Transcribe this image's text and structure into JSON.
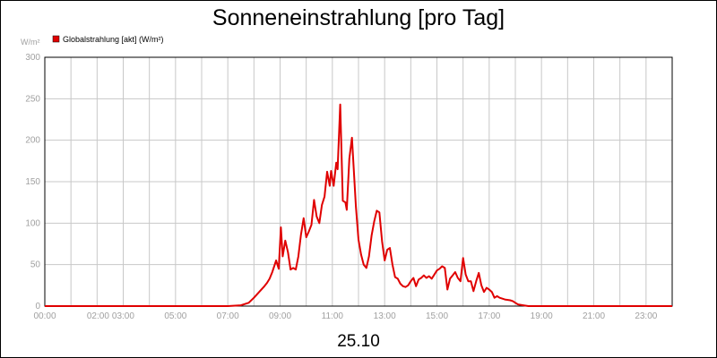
{
  "chart_data": {
    "type": "line",
    "title": "Sonneneinstrahlung [pro Tag]",
    "ylabel": "W/m²",
    "xlabel": "25.10",
    "ylim": [
      0,
      300
    ],
    "yticks": [
      0,
      50,
      100,
      150,
      200,
      250,
      300
    ],
    "xlim": [
      0,
      24
    ],
    "xticks": [
      {
        "x": 0,
        "label": "00:00"
      },
      {
        "x": 2,
        "label": "02:00"
      },
      {
        "x": 3,
        "label": "03:00"
      },
      {
        "x": 5,
        "label": "05:00"
      },
      {
        "x": 7,
        "label": "07:00"
      },
      {
        "x": 9,
        "label": "09:00"
      },
      {
        "x": 11,
        "label": "11:00"
      },
      {
        "x": 13,
        "label": "13:00"
      },
      {
        "x": 15,
        "label": "15:00"
      },
      {
        "x": 17,
        "label": "17:00"
      },
      {
        "x": 19,
        "label": "19:00"
      },
      {
        "x": 21,
        "label": "21:00"
      },
      {
        "x": 23,
        "label": "23:00"
      }
    ],
    "grid": true,
    "legend_position": "top-left",
    "series": [
      {
        "name": "Globalstrahlung [akt] (W/m²)",
        "color": "#e00000",
        "points": [
          [
            0,
            0
          ],
          [
            7,
            0
          ],
          [
            7.5,
            1
          ],
          [
            7.8,
            4
          ],
          [
            8.0,
            10
          ],
          [
            8.2,
            17
          ],
          [
            8.4,
            24
          ],
          [
            8.5,
            28
          ],
          [
            8.6,
            33
          ],
          [
            8.7,
            41
          ],
          [
            8.85,
            55
          ],
          [
            8.95,
            45
          ],
          [
            9.03,
            95
          ],
          [
            9.1,
            60
          ],
          [
            9.2,
            79
          ],
          [
            9.3,
            65
          ],
          [
            9.4,
            44
          ],
          [
            9.5,
            46
          ],
          [
            9.6,
            44
          ],
          [
            9.7,
            60
          ],
          [
            9.8,
            86
          ],
          [
            9.9,
            106
          ],
          [
            10.0,
            83
          ],
          [
            10.1,
            90
          ],
          [
            10.2,
            98
          ],
          [
            10.3,
            128
          ],
          [
            10.4,
            108
          ],
          [
            10.5,
            100
          ],
          [
            10.6,
            122
          ],
          [
            10.7,
            132
          ],
          [
            10.8,
            162
          ],
          [
            10.9,
            145
          ],
          [
            10.95,
            163
          ],
          [
            11.05,
            145
          ],
          [
            11.15,
            173
          ],
          [
            11.2,
            165
          ],
          [
            11.3,
            243
          ],
          [
            11.4,
            127
          ],
          [
            11.5,
            125
          ],
          [
            11.55,
            116
          ],
          [
            11.65,
            178
          ],
          [
            11.75,
            203
          ],
          [
            11.9,
            120
          ],
          [
            12.0,
            80
          ],
          [
            12.1,
            62
          ],
          [
            12.2,
            50
          ],
          [
            12.3,
            46
          ],
          [
            12.4,
            60
          ],
          [
            12.5,
            85
          ],
          [
            12.6,
            102
          ],
          [
            12.7,
            115
          ],
          [
            12.8,
            113
          ],
          [
            12.9,
            78
          ],
          [
            13.0,
            55
          ],
          [
            13.1,
            68
          ],
          [
            13.2,
            70
          ],
          [
            13.3,
            50
          ],
          [
            13.4,
            35
          ],
          [
            13.5,
            33
          ],
          [
            13.6,
            27
          ],
          [
            13.7,
            24
          ],
          [
            13.8,
            23
          ],
          [
            13.9,
            25
          ],
          [
            14.0,
            30
          ],
          [
            14.1,
            34
          ],
          [
            14.2,
            24
          ],
          [
            14.3,
            32
          ],
          [
            14.4,
            34
          ],
          [
            14.5,
            37
          ],
          [
            14.6,
            34
          ],
          [
            14.7,
            36
          ],
          [
            14.8,
            33
          ],
          [
            14.9,
            38
          ],
          [
            15.0,
            43
          ],
          [
            15.1,
            45
          ],
          [
            15.2,
            48
          ],
          [
            15.3,
            46
          ],
          [
            15.4,
            20
          ],
          [
            15.5,
            33
          ],
          [
            15.6,
            37
          ],
          [
            15.7,
            41
          ],
          [
            15.8,
            34
          ],
          [
            15.9,
            30
          ],
          [
            16.0,
            58
          ],
          [
            16.1,
            38
          ],
          [
            16.2,
            30
          ],
          [
            16.3,
            30
          ],
          [
            16.4,
            18
          ],
          [
            16.5,
            30
          ],
          [
            16.6,
            40
          ],
          [
            16.7,
            25
          ],
          [
            16.8,
            17
          ],
          [
            16.9,
            22
          ],
          [
            17.0,
            20
          ],
          [
            17.1,
            17
          ],
          [
            17.2,
            10
          ],
          [
            17.3,
            12
          ],
          [
            17.4,
            10
          ],
          [
            17.6,
            8
          ],
          [
            17.8,
            7
          ],
          [
            17.9,
            6
          ],
          [
            18.0,
            4
          ],
          [
            18.1,
            2
          ],
          [
            18.3,
            1
          ],
          [
            18.5,
            0
          ],
          [
            24,
            0
          ]
        ]
      }
    ]
  }
}
